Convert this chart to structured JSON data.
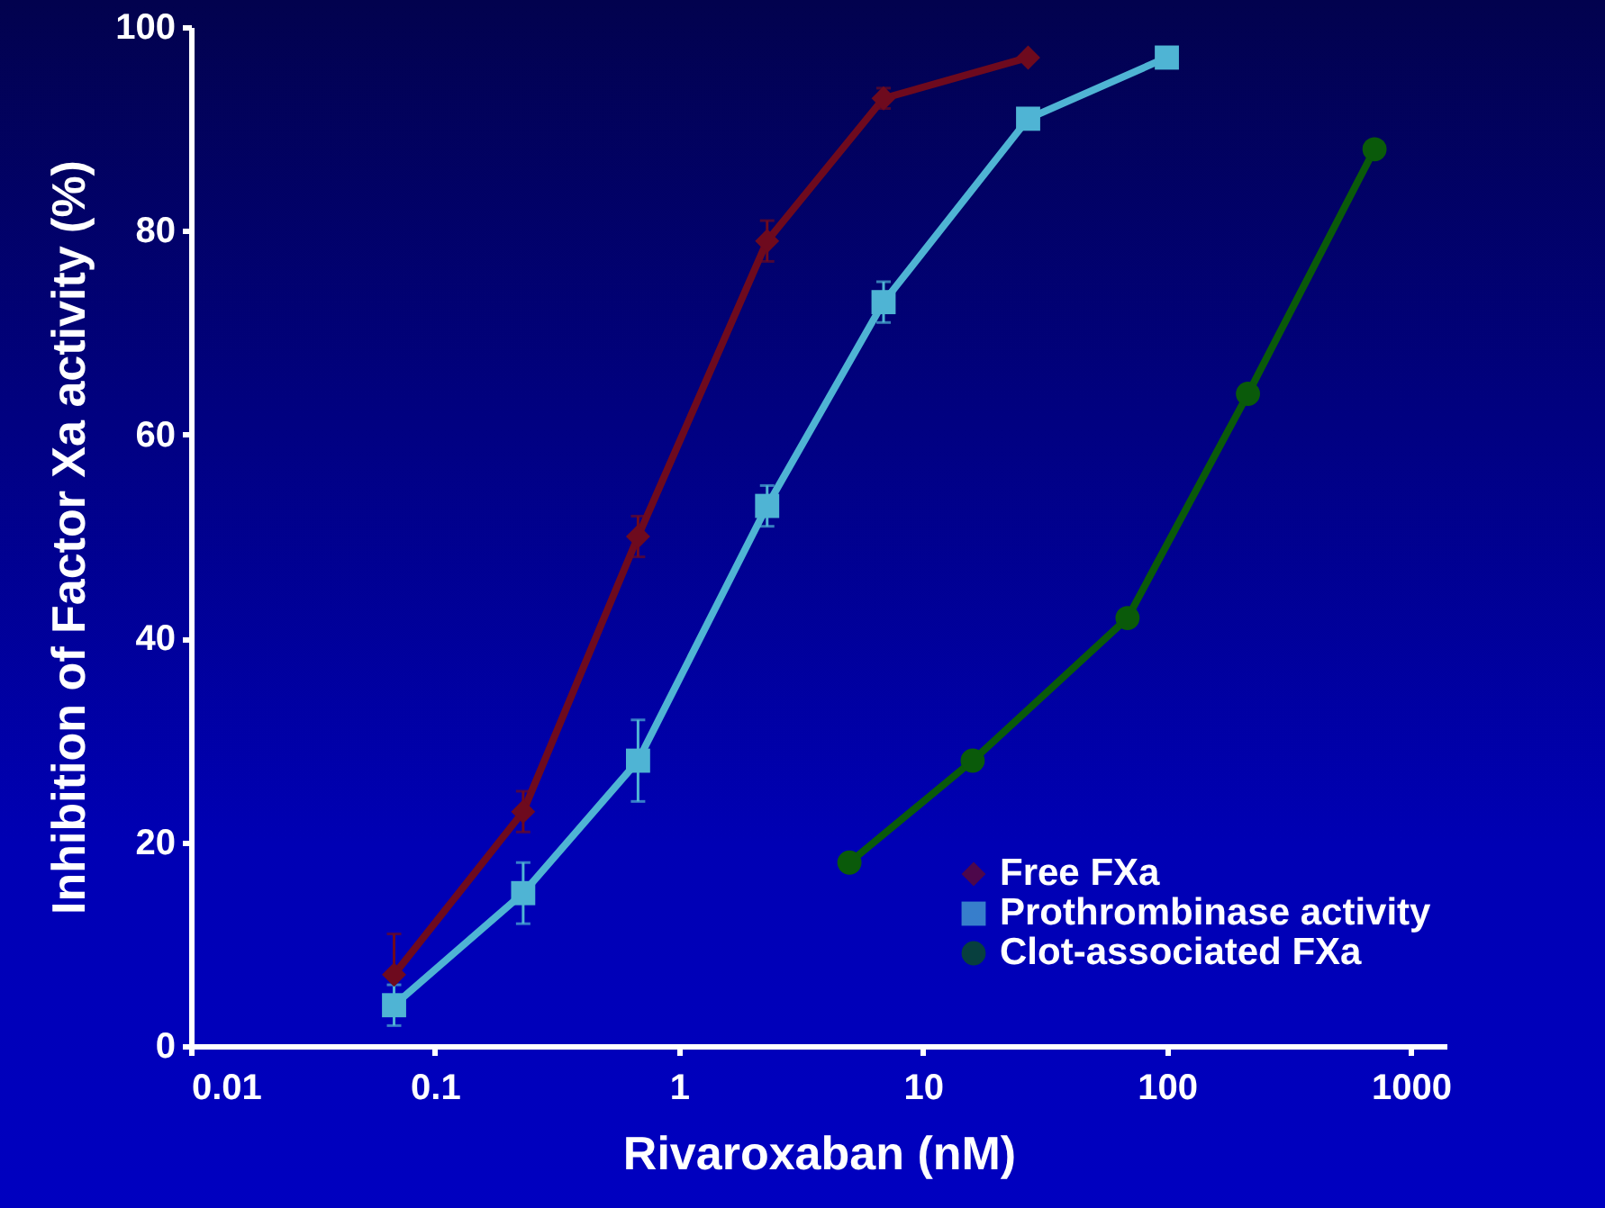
{
  "chart_data": {
    "type": "line",
    "xlabel": "Rivaroxaban (nM)",
    "ylabel": "Inhibition of Factor Xa activity (%)",
    "log": "x",
    "xlim": [
      0.01,
      1400
    ],
    "xticks": [
      0.01,
      0.1,
      1,
      10,
      100,
      1000
    ],
    "ylim": [
      0,
      100
    ],
    "yticks": [
      0,
      20,
      40,
      60,
      80,
      100
    ],
    "grid": false,
    "legend": "bottom right",
    "line_style": "solid",
    "series": [
      {
        "name": "Free FXa",
        "color": "#6e0a1e",
        "marker": "diamond",
        "x": [
          0.068,
          0.23,
          0.68,
          2.3,
          6.9,
          27
        ],
        "values": [
          7,
          23,
          50,
          79,
          93,
          97
        ],
        "errors": [
          4,
          2,
          2,
          2,
          1,
          null
        ]
      },
      {
        "name": "Prothrombinase activity",
        "color": "#4fb4d4",
        "marker": "square",
        "x": [
          0.068,
          0.23,
          0.68,
          2.3,
          6.9,
          27,
          100
        ],
        "values": [
          4,
          15,
          28,
          53,
          73,
          91,
          97
        ],
        "errors": [
          2,
          3,
          4,
          2,
          2,
          null,
          null
        ]
      },
      {
        "name": "Clot-associated FXa",
        "color": "#0a5a0a",
        "marker": "circle",
        "x": [
          5,
          16,
          69,
          215,
          710
        ],
        "values": [
          18,
          28,
          42,
          64,
          88
        ]
      }
    ]
  }
}
